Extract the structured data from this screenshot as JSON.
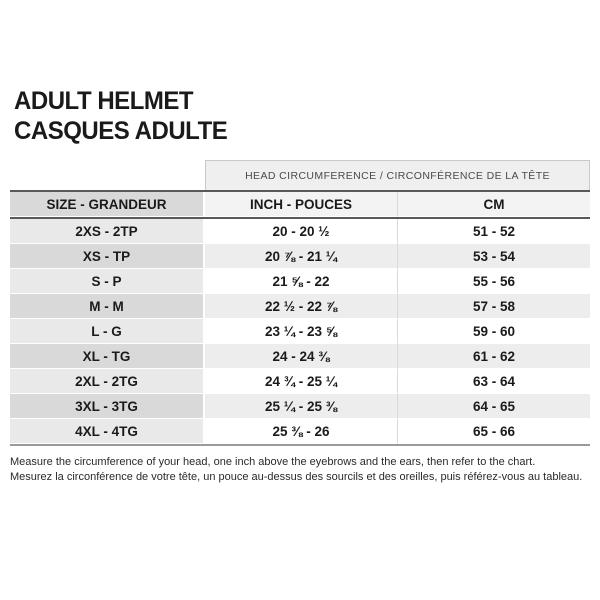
{
  "title": {
    "line1": "ADULT HELMET",
    "line2": "CASQUES ADULTE"
  },
  "table": {
    "span_header": "HEAD CIRCUMFERENCE / CIRCONFÉRENCE DE LA TÊTE",
    "columns": [
      "SIZE - GRANDEUR",
      "INCH - POUCES",
      "CM"
    ],
    "rows": [
      {
        "size": "2XS - 2TP",
        "inch": "20 - 20 ½",
        "cm": "51 - 52"
      },
      {
        "size": "XS - TP",
        "inch": "20 ⅞ - 21 ¼",
        "cm": "53 - 54"
      },
      {
        "size": "S - P",
        "inch": "21 ⅝ - 22",
        "cm": "55 - 56"
      },
      {
        "size": "M - M",
        "inch": "22 ½ - 22 ⅞",
        "cm": "57 - 58"
      },
      {
        "size": "L - G",
        "inch": "23 ¼ - 23 ⅝",
        "cm": "59 - 60"
      },
      {
        "size": "XL - TG",
        "inch": "24 - 24 ⅜",
        "cm": "61 - 62"
      },
      {
        "size": "2XL - 2TG",
        "inch": "24 ¾ - 25 ¼",
        "cm": "63 - 64"
      },
      {
        "size": "3XL - 3TG",
        "inch": "25 ¼ - 25 ⅜",
        "cm": "64 - 65"
      },
      {
        "size": "4XL - 4TG",
        "inch": "25 ⅜ - 26",
        "cm": "65 - 66"
      }
    ]
  },
  "footer": {
    "line_en": "Measure the circumference of your head, one inch above the eyebrows and the ears, then refer to the chart.",
    "line_fr": "Mesurez la circonférence de votre tête, un pouce au-dessus des sourcils et des oreilles, puis référez-vous au tableau."
  },
  "colors": {
    "header_border": "#58595b",
    "header_size_bg": "#d9d9d9",
    "header_data_bg": "#f3f3f3",
    "row_odd_size_bg": "#e9e9e9",
    "row_even_size_bg": "#d9d9d9",
    "row_even_data_bg": "#ededed",
    "banner_bg": "#efefef",
    "bottom_border": "#9a9a9a"
  }
}
